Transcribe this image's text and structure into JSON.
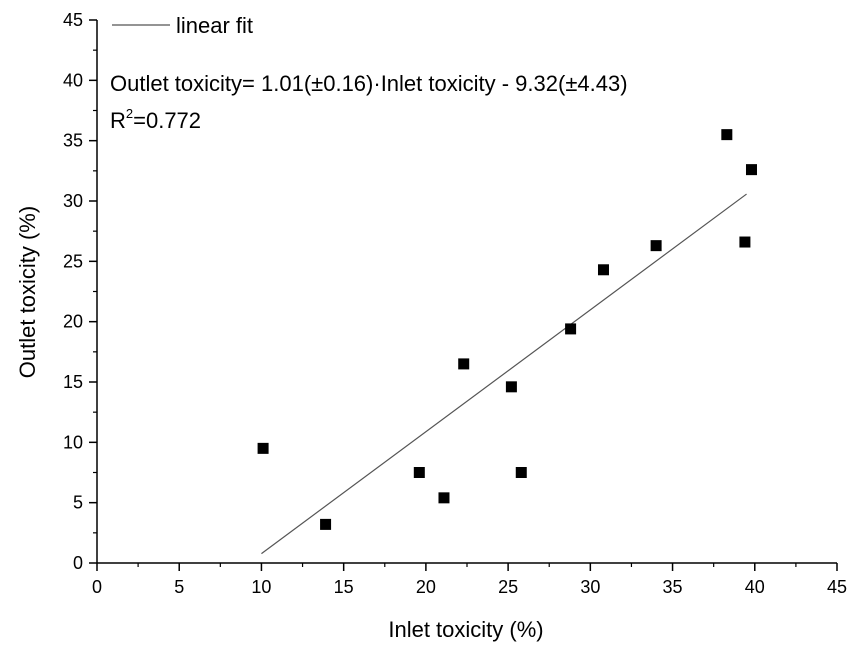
{
  "chart_data": {
    "type": "scatter",
    "xlabel": "Inlet toxicity (%)",
    "ylabel": "Outlet toxicity (%)",
    "xlim": [
      0,
      45
    ],
    "ylim": [
      0,
      45
    ],
    "xticks": [
      0,
      5,
      10,
      15,
      20,
      25,
      30,
      35,
      40,
      45
    ],
    "yticks": [
      0,
      5,
      10,
      15,
      20,
      25,
      30,
      35,
      40,
      45
    ],
    "grid": false,
    "legend_position": "top-left",
    "points": [
      {
        "x": 10.1,
        "y": 9.5
      },
      {
        "x": 13.9,
        "y": 3.2
      },
      {
        "x": 19.6,
        "y": 7.5
      },
      {
        "x": 21.1,
        "y": 5.4
      },
      {
        "x": 22.3,
        "y": 16.5
      },
      {
        "x": 25.2,
        "y": 14.6
      },
      {
        "x": 25.8,
        "y": 7.5
      },
      {
        "x": 28.8,
        "y": 19.4
      },
      {
        "x": 30.8,
        "y": 24.3
      },
      {
        "x": 34.0,
        "y": 26.3
      },
      {
        "x": 38.3,
        "y": 35.5
      },
      {
        "x": 39.4,
        "y": 26.6
      },
      {
        "x": 39.8,
        "y": 32.6
      }
    ],
    "fit": {
      "name": "linear fit",
      "slope": 1.01,
      "intercept": -9.32,
      "x_range": [
        10,
        39.5
      ]
    },
    "annotations": {
      "equation": "Outlet toxicity= 1.01(±0.16)·Inlet toxicity - 9.32(±4.43)",
      "r2_prefix": "R",
      "r2_sup": "2",
      "r2_value": "=0.772"
    },
    "colors": {
      "marker": "#000000",
      "fit_line": "#555555",
      "axis": "#000000"
    }
  }
}
